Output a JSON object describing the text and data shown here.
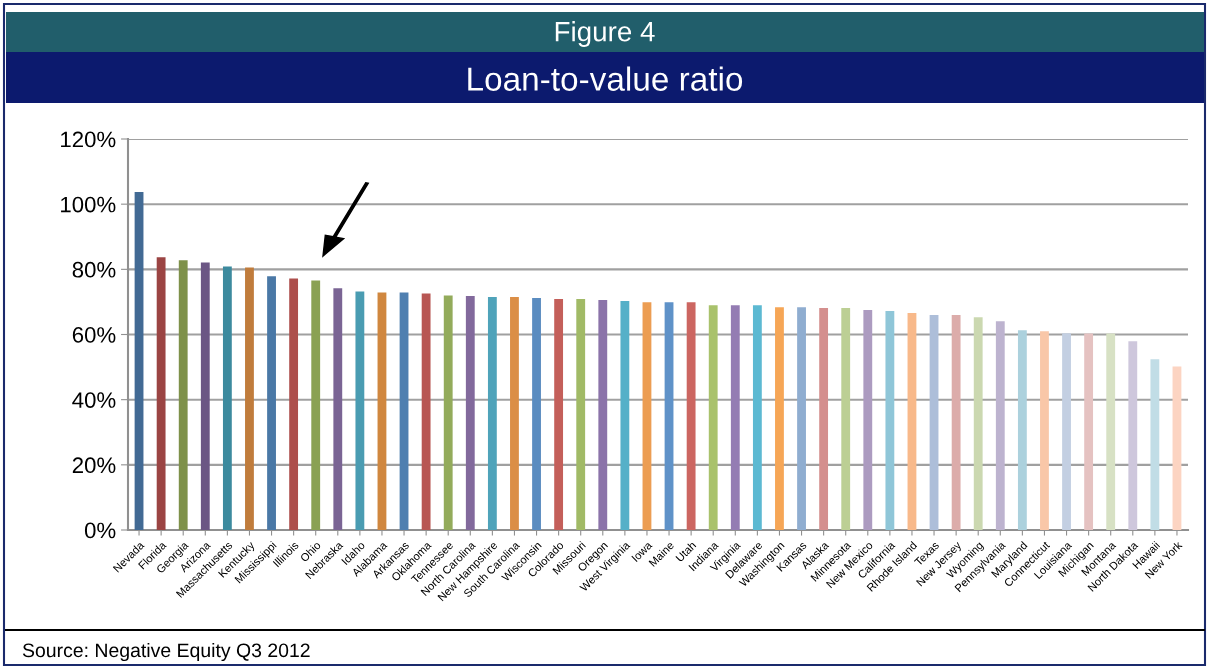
{
  "chart_data": {
    "type": "bar",
    "title": "Figure 4",
    "subtitle": "Loan-to-value ratio",
    "categories": [
      "Nevada",
      "Florida",
      "Georgia",
      "Arizona",
      "Massachusetts",
      "Kentucky",
      "Mississippi",
      "Illinois",
      "Ohio",
      "Nebraska",
      "Idaho",
      "Alabama",
      "Arkansas",
      "Oklahoma",
      "Tennessee",
      "North Carolina",
      "New Hampshire",
      "South Carolina",
      "Wisconsin",
      "Colorado",
      "Missouri",
      "Oregon",
      "West Virginia",
      "Iowa",
      "Maine",
      "Utah",
      "Indiana",
      "Virginia",
      "Delaware",
      "Washington",
      "Kansas",
      "Alaska",
      "Minnesota",
      "New Mexico",
      "California",
      "Rhode Island",
      "Texas",
      "New Jersey",
      "Wyoming",
      "Pennsylvania",
      "Maryland",
      "Connecticut",
      "Louisiana",
      "Michigan",
      "Montana",
      "North Dakota",
      "Hawaii",
      "New York"
    ],
    "values": [
      103.7,
      83.7,
      82.8,
      82.1,
      80.9,
      80.6,
      77.9,
      77.2,
      76.6,
      74.2,
      73.2,
      72.9,
      72.9,
      72.6,
      72.0,
      71.8,
      71.5,
      71.5,
      71.2,
      70.9,
      70.9,
      70.6,
      70.3,
      69.9,
      69.9,
      69.9,
      69.0,
      69.0,
      69.0,
      68.4,
      68.4,
      68.1,
      68.1,
      67.5,
      67.2,
      66.6,
      66.0,
      66.0,
      65.3,
      64.1,
      61.3,
      61.0,
      60.4,
      60.3,
      60.3,
      57.9,
      52.4,
      50.2
    ],
    "colors": [
      "#426a94",
      "#9b4443",
      "#7e914a",
      "#6b5684",
      "#3c8a9e",
      "#c07c3c",
      "#4a78a6",
      "#ad4f4c",
      "#8aa153",
      "#7a6494",
      "#4a9cb2",
      "#d0873f",
      "#4f7fb0",
      "#b85653",
      "#93ab5b",
      "#82699c",
      "#4fa3ba",
      "#db8e46",
      "#5a8cc0",
      "#c45f5a",
      "#a1ba66",
      "#8b73a9",
      "#55b0c8",
      "#ec9d52",
      "#5f92c8",
      "#cc6661",
      "#a9c26c",
      "#947cb3",
      "#5cb9d2",
      "#f6a656",
      "#8fadd0",
      "#d48f8e",
      "#bccf94",
      "#ac9bc0",
      "#8fc6d8",
      "#f8b98a",
      "#adbed9",
      "#dcacaa",
      "#cbd8b0",
      "#bdb3cf",
      "#acd1dd",
      "#f9c7a8",
      "#c3cfe2",
      "#e5c2c1",
      "#d7e1c4",
      "#cec7dc",
      "#c1dde6",
      "#fcd4c2"
    ],
    "ylim": [
      0,
      120
    ],
    "yticks": [
      {
        "value": 0,
        "label": "0%"
      },
      {
        "value": 20,
        "label": "20%"
      },
      {
        "value": 40,
        "label": "40%"
      },
      {
        "value": 60,
        "label": "60%"
      },
      {
        "value": 80,
        "label": "80%"
      },
      {
        "value": 100,
        "label": "100%"
      },
      {
        "value": 120,
        "label": "120%"
      }
    ],
    "grid": "y",
    "annotations": [
      "Source: Negative Equity Q3 2012"
    ]
  }
}
